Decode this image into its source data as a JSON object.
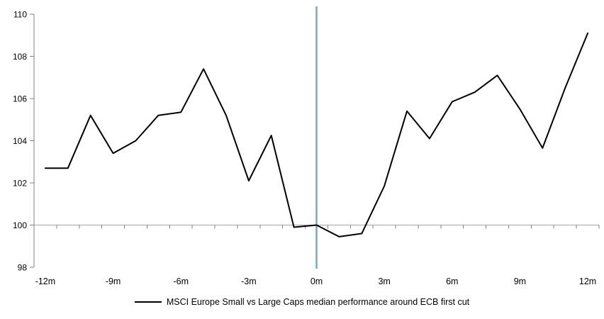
{
  "chart_data": {
    "type": "line",
    "title": "",
    "x": [
      -12,
      -11,
      -10,
      -9,
      -8,
      -7,
      -6,
      -5,
      -4,
      -3,
      -2,
      -1,
      0,
      1,
      2,
      3,
      4,
      5,
      6,
      7,
      8,
      9,
      10,
      11,
      12
    ],
    "series": [
      {
        "name": "MSCI Europe Small vs Large Caps median performance around ECB first cut",
        "color": "#000000",
        "values": [
          102.7,
          102.7,
          105.2,
          103.4,
          104.0,
          105.2,
          105.35,
          107.4,
          105.2,
          102.1,
          104.25,
          99.9,
          100.0,
          99.45,
          99.6,
          101.85,
          105.4,
          104.1,
          105.85,
          106.3,
          107.1,
          105.5,
          103.65,
          106.5,
          109.1
        ]
      }
    ],
    "x_axis": {
      "tick_labels": [
        "-12m",
        "-9m",
        "-6m",
        "-3m",
        "0m",
        "3m",
        "6m",
        "9m",
        "12m"
      ],
      "tick_positions": [
        -12,
        -9,
        -6,
        -3,
        0,
        3,
        6,
        9,
        12
      ],
      "minor_tick_every_months": 1,
      "range": [
        -12.5,
        12.5
      ]
    },
    "y_axis": {
      "ticks": [
        98,
        100,
        102,
        104,
        106,
        108,
        110
      ],
      "min": 98,
      "max": 110
    },
    "baseline_value": 100,
    "event_line": {
      "x": 0,
      "color": "#7BA6D0"
    },
    "grid": "baseline-only",
    "legend_position": "bottom-center",
    "colors": {
      "series": "#000000",
      "event_line": "#7BA6D0",
      "axis": "#808080",
      "baseline": "#A6A6A6",
      "text": "#000000",
      "background": "#FFFFFF"
    }
  },
  "legend": {
    "label": "MSCI Europe Small vs Large Caps median performance around ECB first cut"
  }
}
